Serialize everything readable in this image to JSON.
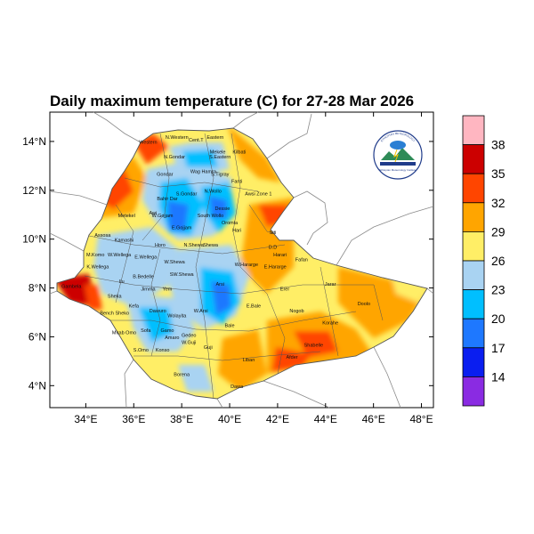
{
  "title": "Daily maximum temperature (C) for 27-28 Mar 2026",
  "map": {
    "lon_range": [
      32.5,
      48.5
    ],
    "lat_range": [
      3.1,
      15.2
    ],
    "lon_ticks": [
      "34°E",
      "36°E",
      "38°E",
      "40°E",
      "42°E",
      "44°E",
      "46°E",
      "48°E"
    ],
    "lat_ticks": [
      "4°N",
      "6°N",
      "8°N",
      "10°N",
      "12°N",
      "14°N"
    ],
    "variable": "Daily maximum temperature",
    "units": "C"
  },
  "legend": {
    "levels": [
      "38",
      "35",
      "32",
      "29",
      "26",
      "23",
      "20",
      "17",
      "14"
    ],
    "colors": [
      "#ffb6c1",
      "#cc0000",
      "#ff4500",
      "#ffa500",
      "#ffee66",
      "#a9d3f2",
      "#00bfff",
      "#1e78ff",
      "#0a1ef0",
      "#8a2be2"
    ]
  },
  "places": [
    {
      "name": "N.Western",
      "lon": 37.8,
      "lat": 14.1
    },
    {
      "name": "Cent.T",
      "lon": 38.6,
      "lat": 14.0
    },
    {
      "name": "Eastern",
      "lon": 39.4,
      "lat": 14.1
    },
    {
      "name": "Western",
      "lon": 36.6,
      "lat": 13.9
    },
    {
      "name": "Mekele",
      "lon": 39.5,
      "lat": 13.5
    },
    {
      "name": "S.Eastern",
      "lon": 39.6,
      "lat": 13.3
    },
    {
      "name": "Kilbati",
      "lon": 40.4,
      "lat": 13.5
    },
    {
      "name": "N.Gondar",
      "lon": 37.7,
      "lat": 13.3
    },
    {
      "name": "Gondar",
      "lon": 37.3,
      "lat": 12.6
    },
    {
      "name": "Wag Hamra",
      "lon": 38.9,
      "lat": 12.7
    },
    {
      "name": "S.Tigray",
      "lon": 39.6,
      "lat": 12.6
    },
    {
      "name": "Fanti",
      "lon": 40.3,
      "lat": 12.3
    },
    {
      "name": "Awsi Zone 1",
      "lon": 41.2,
      "lat": 11.8
    },
    {
      "name": "S.Gondar",
      "lon": 38.2,
      "lat": 11.8
    },
    {
      "name": "N.Wollo",
      "lon": 39.3,
      "lat": 11.9
    },
    {
      "name": "Bahir Dar",
      "lon": 37.4,
      "lat": 11.6
    },
    {
      "name": "Awi",
      "lon": 36.8,
      "lat": 11.0
    },
    {
      "name": "W.Gojjam",
      "lon": 37.2,
      "lat": 10.9
    },
    {
      "name": "Metekel",
      "lon": 35.7,
      "lat": 10.9
    },
    {
      "name": "E.Gojjam",
      "lon": 38.0,
      "lat": 10.4
    },
    {
      "name": "South Wollo",
      "lon": 39.2,
      "lat": 10.9
    },
    {
      "name": "Dessie",
      "lon": 39.7,
      "lat": 11.2
    },
    {
      "name": "Oromia",
      "lon": 40.0,
      "lat": 10.6
    },
    {
      "name": "Hari",
      "lon": 40.3,
      "lat": 10.3
    },
    {
      "name": "Siti",
      "lon": 41.8,
      "lat": 10.2
    },
    {
      "name": "Assosa",
      "lon": 34.7,
      "lat": 10.1
    },
    {
      "name": "Kamashi",
      "lon": 35.6,
      "lat": 9.9
    },
    {
      "name": "Horo",
      "lon": 37.1,
      "lat": 9.7
    },
    {
      "name": "N.Shewa",
      "lon": 38.5,
      "lat": 9.7
    },
    {
      "name": "Shewa",
      "lon": 39.2,
      "lat": 9.7
    },
    {
      "name": "D.D",
      "lon": 41.8,
      "lat": 9.6
    },
    {
      "name": "Harari",
      "lon": 42.1,
      "lat": 9.3
    },
    {
      "name": "Fafan",
      "lon": 43.0,
      "lat": 9.1
    },
    {
      "name": "M.Komo",
      "lon": 34.4,
      "lat": 9.3
    },
    {
      "name": "W.Wellega",
      "lon": 35.4,
      "lat": 9.3
    },
    {
      "name": "E.Wellega",
      "lon": 36.5,
      "lat": 9.2
    },
    {
      "name": "W.Shewa",
      "lon": 37.7,
      "lat": 9.0
    },
    {
      "name": "W.Hararge",
      "lon": 40.7,
      "lat": 8.9
    },
    {
      "name": "E.Hararge",
      "lon": 41.9,
      "lat": 8.8
    },
    {
      "name": "K.Wellega",
      "lon": 34.5,
      "lat": 8.8
    },
    {
      "name": "Arsi",
      "lon": 39.6,
      "lat": 8.1
    },
    {
      "name": "Ilu",
      "lon": 35.5,
      "lat": 8.2
    },
    {
      "name": "B.Bedelle",
      "lon": 36.4,
      "lat": 8.4
    },
    {
      "name": "SW.Shewa",
      "lon": 38.0,
      "lat": 8.5
    },
    {
      "name": "Jimma",
      "lon": 36.6,
      "lat": 7.9
    },
    {
      "name": "Yem",
      "lon": 37.4,
      "lat": 7.9
    },
    {
      "name": "Erer",
      "lon": 42.3,
      "lat": 7.9
    },
    {
      "name": "Jarar",
      "lon": 44.2,
      "lat": 8.1
    },
    {
      "name": "Gambela",
      "lon": 33.4,
      "lat": 8.0
    },
    {
      "name": "Sheka",
      "lon": 35.2,
      "lat": 7.6
    },
    {
      "name": "Bench Sheko",
      "lon": 35.2,
      "lat": 6.9
    },
    {
      "name": "Kefa",
      "lon": 36.0,
      "lat": 7.2
    },
    {
      "name": "Dawuro",
      "lon": 37.0,
      "lat": 7.0
    },
    {
      "name": "Wolayita",
      "lon": 37.8,
      "lat": 6.8
    },
    {
      "name": "W.Arsi",
      "lon": 38.8,
      "lat": 7.0
    },
    {
      "name": "E.Bale",
      "lon": 41.0,
      "lat": 7.2
    },
    {
      "name": "Nogob",
      "lon": 42.8,
      "lat": 7.0
    },
    {
      "name": "Doolo",
      "lon": 45.6,
      "lat": 7.3
    },
    {
      "name": "Mirab Omo",
      "lon": 35.6,
      "lat": 6.1
    },
    {
      "name": "Sofa",
      "lon": 36.5,
      "lat": 6.2
    },
    {
      "name": "Gamo",
      "lon": 37.4,
      "lat": 6.2
    },
    {
      "name": "Gedeo",
      "lon": 38.3,
      "lat": 6.0
    },
    {
      "name": "Bale",
      "lon": 40.0,
      "lat": 6.4
    },
    {
      "name": "Korahe",
      "lon": 44.2,
      "lat": 6.5
    },
    {
      "name": "Amaro",
      "lon": 37.6,
      "lat": 5.9
    },
    {
      "name": "W.Guji",
      "lon": 38.3,
      "lat": 5.7
    },
    {
      "name": "Konso",
      "lon": 37.2,
      "lat": 5.4
    },
    {
      "name": "Guji",
      "lon": 39.1,
      "lat": 5.5
    },
    {
      "name": "Shabelle",
      "lon": 43.5,
      "lat": 5.6
    },
    {
      "name": "S.Omo",
      "lon": 36.3,
      "lat": 5.4
    },
    {
      "name": "Liban",
      "lon": 40.8,
      "lat": 5.0
    },
    {
      "name": "Afder",
      "lon": 42.6,
      "lat": 5.1
    },
    {
      "name": "Borena",
      "lon": 38.0,
      "lat": 4.4
    },
    {
      "name": "Dawa",
      "lon": 40.3,
      "lat": 3.9
    }
  ],
  "logo": {
    "arc_text": "ETHIOPIAN METEOROLOGY",
    "caption": "Ethiopian Meteorology Institute"
  }
}
